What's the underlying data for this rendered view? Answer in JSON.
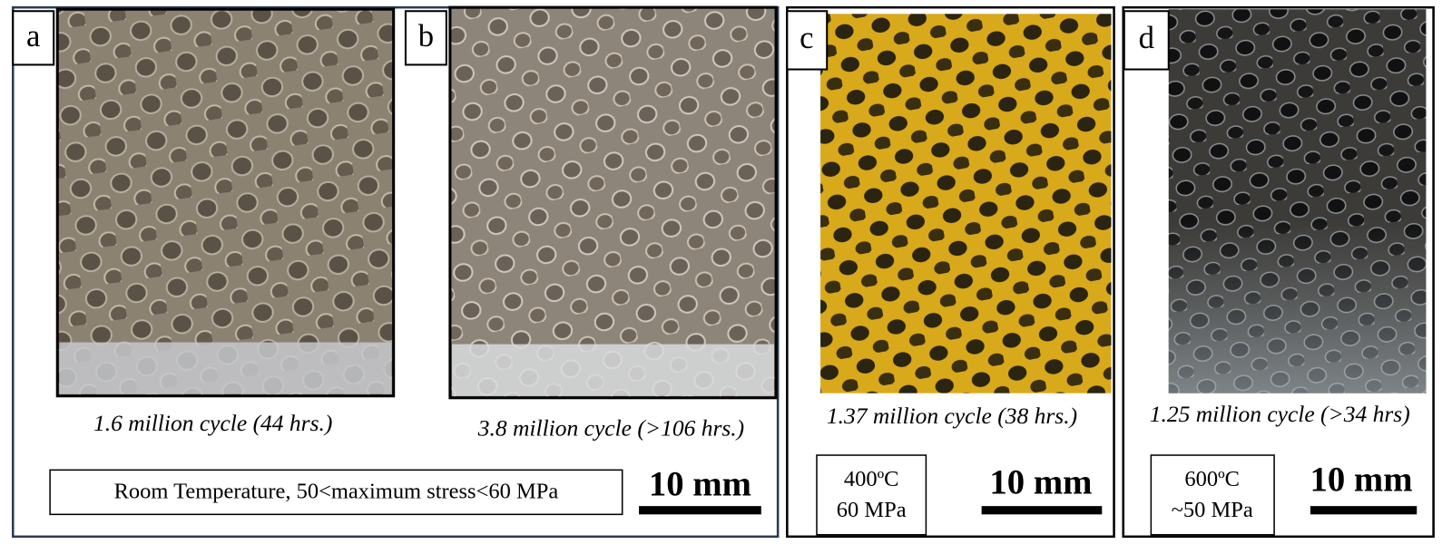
{
  "panels": [
    {
      "label": "a",
      "caption": "1.6 million cycle (44 hrs.)"
    },
    {
      "label": "b",
      "caption": "3.8 million cycle (>106 hrs.)"
    },
    {
      "label": "c",
      "caption": "1.37 million cycle (38 hrs.)"
    },
    {
      "label": "d",
      "caption": "1.25 million cycle (>34 hrs)"
    }
  ],
  "conditions": [
    [
      "Room Temperature, 50<maximum stress<60 MPa"
    ],
    [
      "400ºC",
      "60 MPa"
    ],
    [
      "600ºC",
      "~50 MPa"
    ]
  ],
  "scale_bars": [
    "10 mm",
    "10 mm",
    "10 mm"
  ]
}
